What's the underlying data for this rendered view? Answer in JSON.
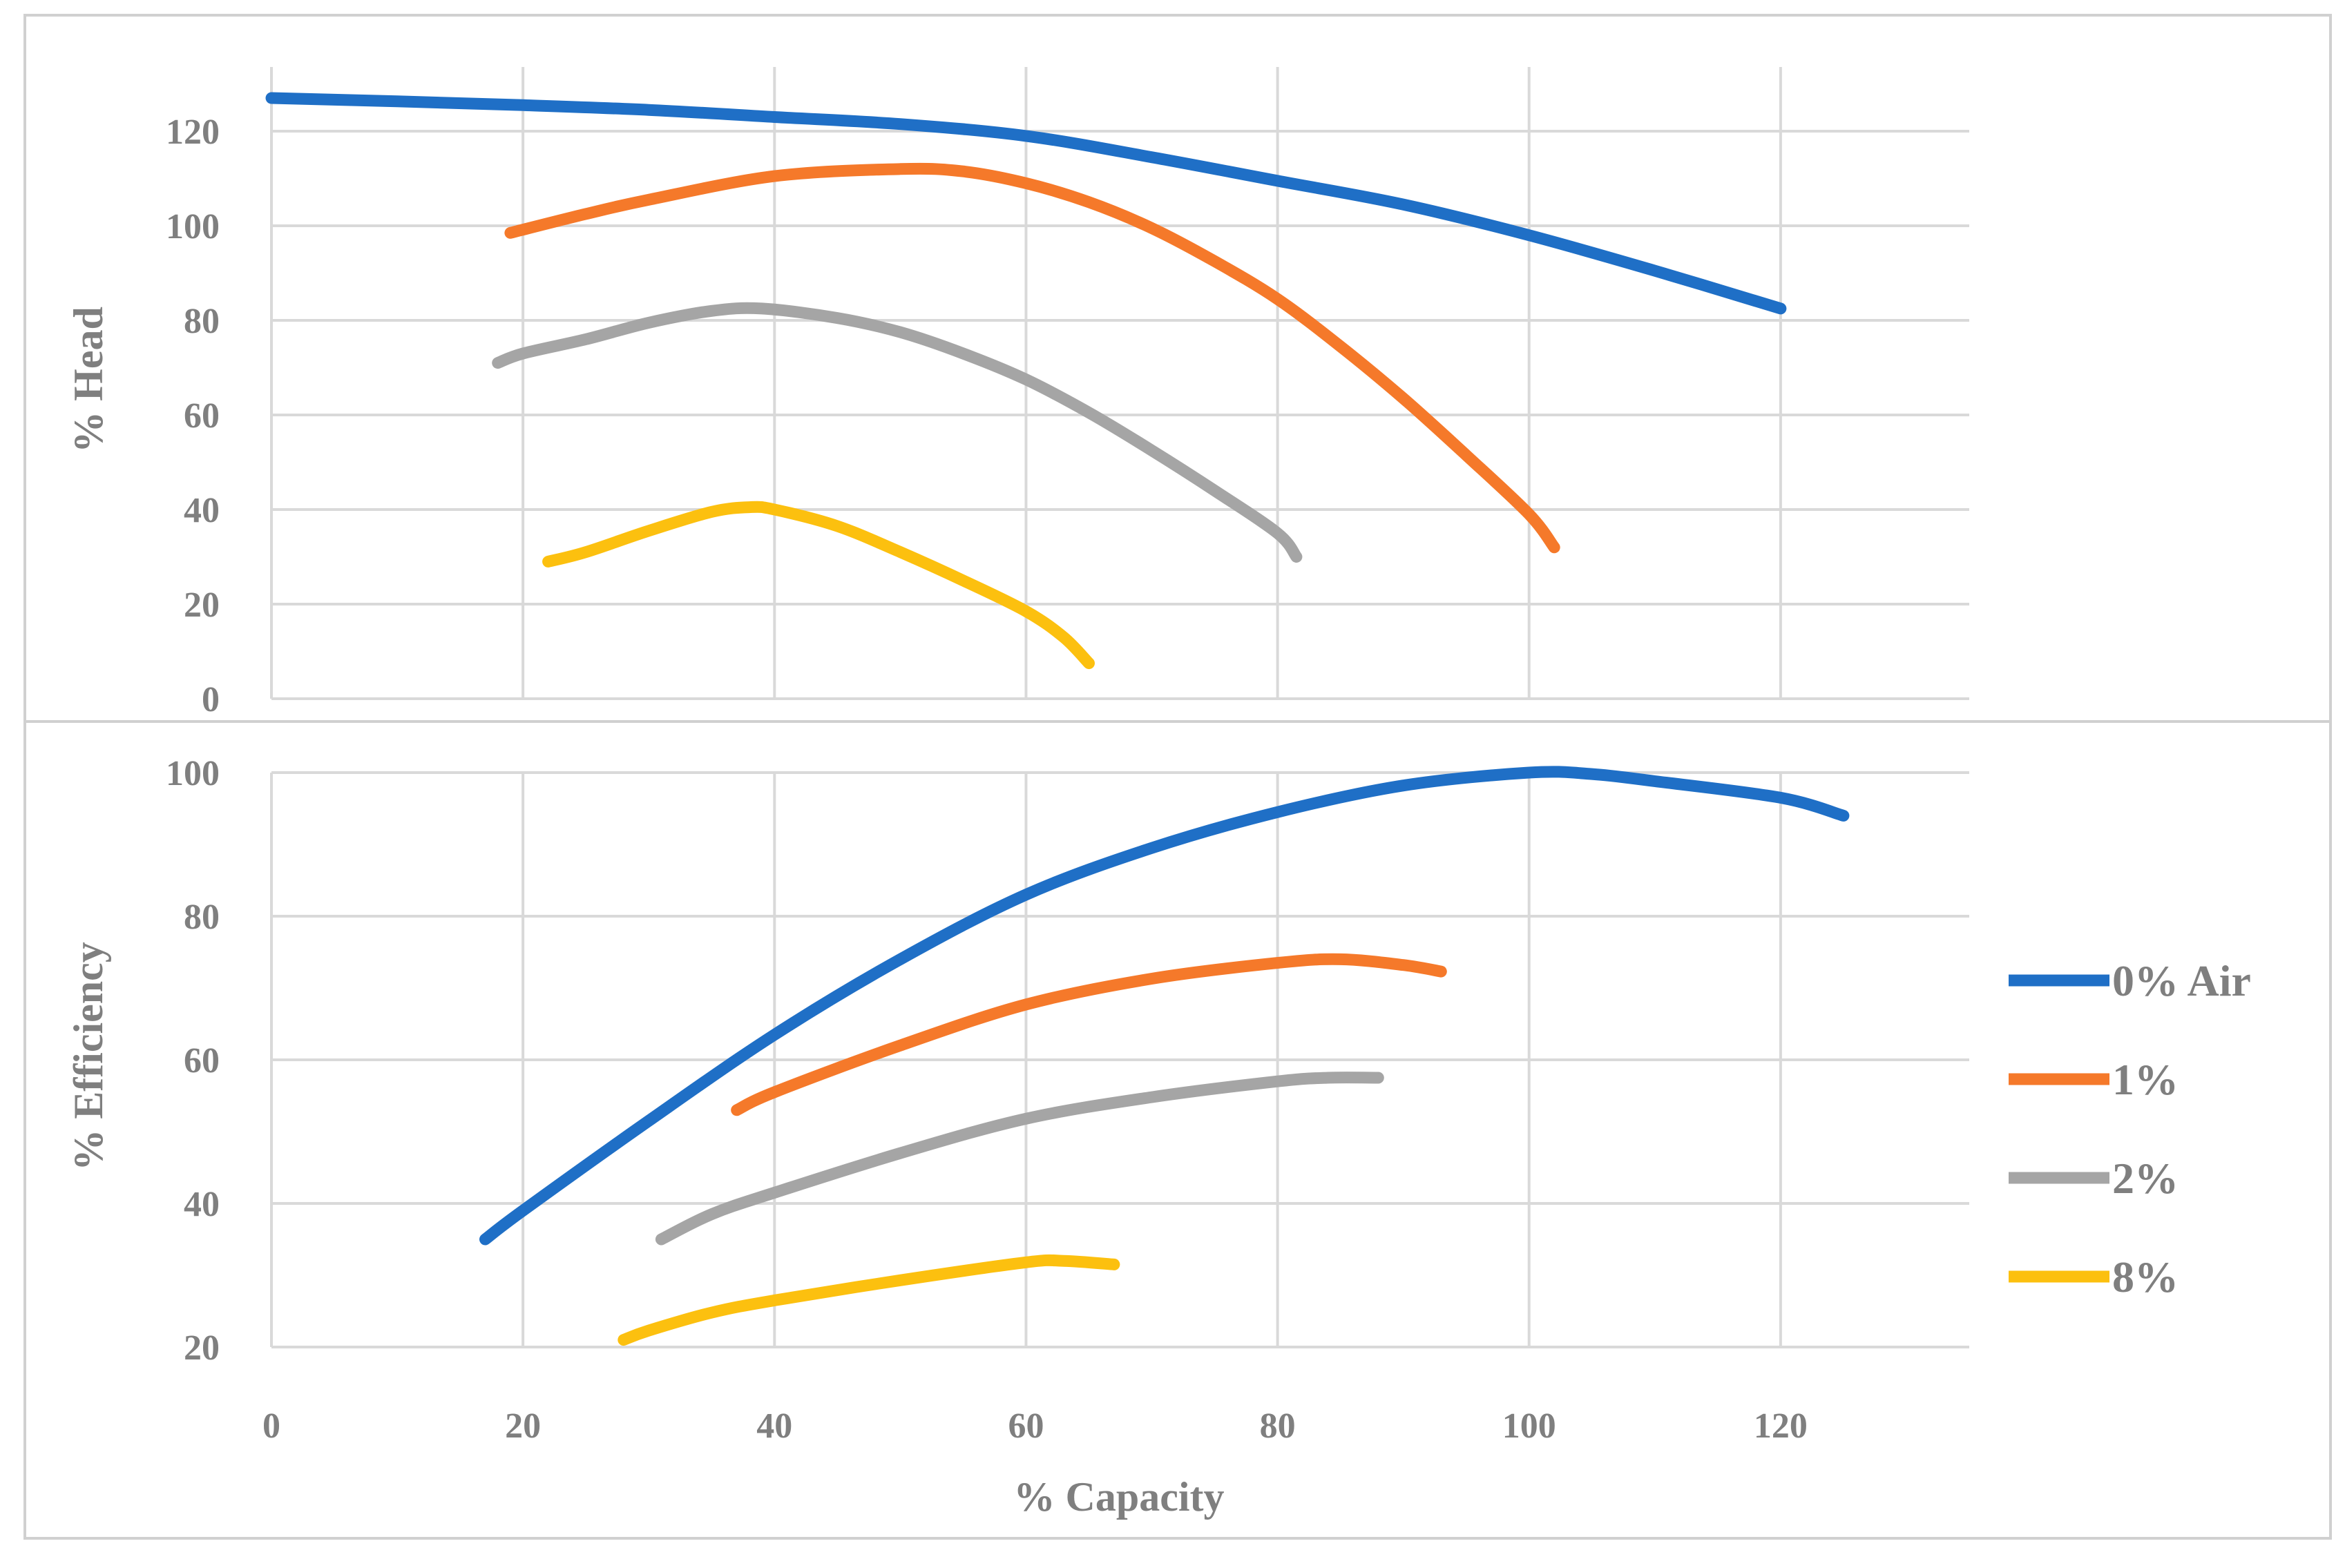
{
  "colors": {
    "air_0": "#1f6fc6",
    "air_1": "#f5792a",
    "air_2": "#a5a5a5",
    "air_8": "#fcc00f"
  },
  "legend": [
    {
      "label": "0% Air",
      "color_key": "air_0"
    },
    {
      "label": "1%",
      "color_key": "air_1"
    },
    {
      "label": "2%",
      "color_key": "air_2"
    },
    {
      "label": "8%",
      "color_key": "air_8"
    }
  ],
  "chart_data": [
    {
      "type": "line",
      "ylabel": "% Head",
      "xlabel": "",
      "xlim": [
        0,
        135
      ],
      "ylim": [
        0,
        135
      ],
      "yticks": [
        0,
        20,
        40,
        60,
        80,
        100,
        120
      ],
      "grid": true,
      "series": [
        {
          "name": "0% Air",
          "color_key": "air_0",
          "x": [
            0,
            10,
            20,
            30,
            40,
            50,
            60,
            70,
            80,
            90,
            100,
            110,
            120
          ],
          "y": [
            127,
            126.3,
            125.5,
            124.5,
            123,
            121.5,
            119,
            114.5,
            109.5,
            104.5,
            98,
            90.5,
            82.5
          ]
        },
        {
          "name": "1%",
          "color_key": "air_1",
          "x": [
            19,
            25,
            30,
            40,
            50,
            55,
            60,
            65,
            70,
            75,
            80,
            85,
            90,
            95,
            100,
            102
          ],
          "y": [
            98.5,
            102.5,
            105.5,
            110.5,
            112,
            111.5,
            109,
            105,
            99.5,
            92.5,
            84.5,
            74.5,
            63.5,
            51.5,
            39,
            32
          ]
        },
        {
          "name": "2%",
          "color_key": "air_2",
          "x": [
            18,
            20,
            25,
            30,
            35,
            39,
            45,
            50,
            55,
            60,
            65,
            70,
            75,
            80,
            81.5
          ],
          "y": [
            71,
            73,
            76,
            79.5,
            82,
            82.5,
            80.5,
            77.5,
            73,
            67.5,
            60.5,
            52.5,
            44,
            35,
            30
          ]
        },
        {
          "name": "8%",
          "color_key": "air_8",
          "x": [
            22,
            25,
            30,
            35,
            38,
            40,
            45,
            50,
            55,
            60,
            63,
            65
          ],
          "y": [
            29,
            31,
            35.5,
            39.5,
            40.5,
            40,
            36.5,
            31,
            25,
            18.5,
            13,
            7.5
          ]
        }
      ]
    },
    {
      "type": "line",
      "ylabel": "% Efficiency",
      "xlabel": "% Capacity",
      "xlim": [
        0,
        135
      ],
      "ylim": [
        20,
        100
      ],
      "yticks": [
        20,
        40,
        60,
        80,
        100
      ],
      "xticks": [
        0,
        20,
        40,
        60,
        80,
        100,
        120
      ],
      "grid": true,
      "series": [
        {
          "name": "0% Air",
          "color_key": "air_0",
          "x": [
            17,
            20,
            30,
            40,
            50,
            60,
            70,
            80,
            90,
            100,
            105,
            110,
            120,
            125
          ],
          "y": [
            35,
            39,
            51.5,
            63.5,
            74,
            83,
            89.5,
            94.5,
            98.2,
            100,
            99.8,
            98.8,
            96.5,
            94
          ]
        },
        {
          "name": "1%",
          "color_key": "air_1",
          "x": [
            37,
            40,
            50,
            60,
            70,
            80,
            85,
            90,
            93
          ],
          "y": [
            53,
            55.5,
            62,
            67.7,
            71.3,
            73.5,
            74,
            73.2,
            72.3
          ]
        },
        {
          "name": "2%",
          "color_key": "air_2",
          "x": [
            31,
            35,
            40,
            50,
            60,
            70,
            80,
            84,
            88
          ],
          "y": [
            35,
            38.5,
            41.5,
            47,
            51.8,
            54.8,
            57,
            57.5,
            57.5
          ]
        },
        {
          "name": "8%",
          "color_key": "air_8",
          "x": [
            28,
            30,
            35,
            40,
            50,
            60,
            63,
            67
          ],
          "y": [
            21,
            22.3,
            24.8,
            26.5,
            29.3,
            31.8,
            32,
            31.5
          ]
        }
      ]
    }
  ]
}
